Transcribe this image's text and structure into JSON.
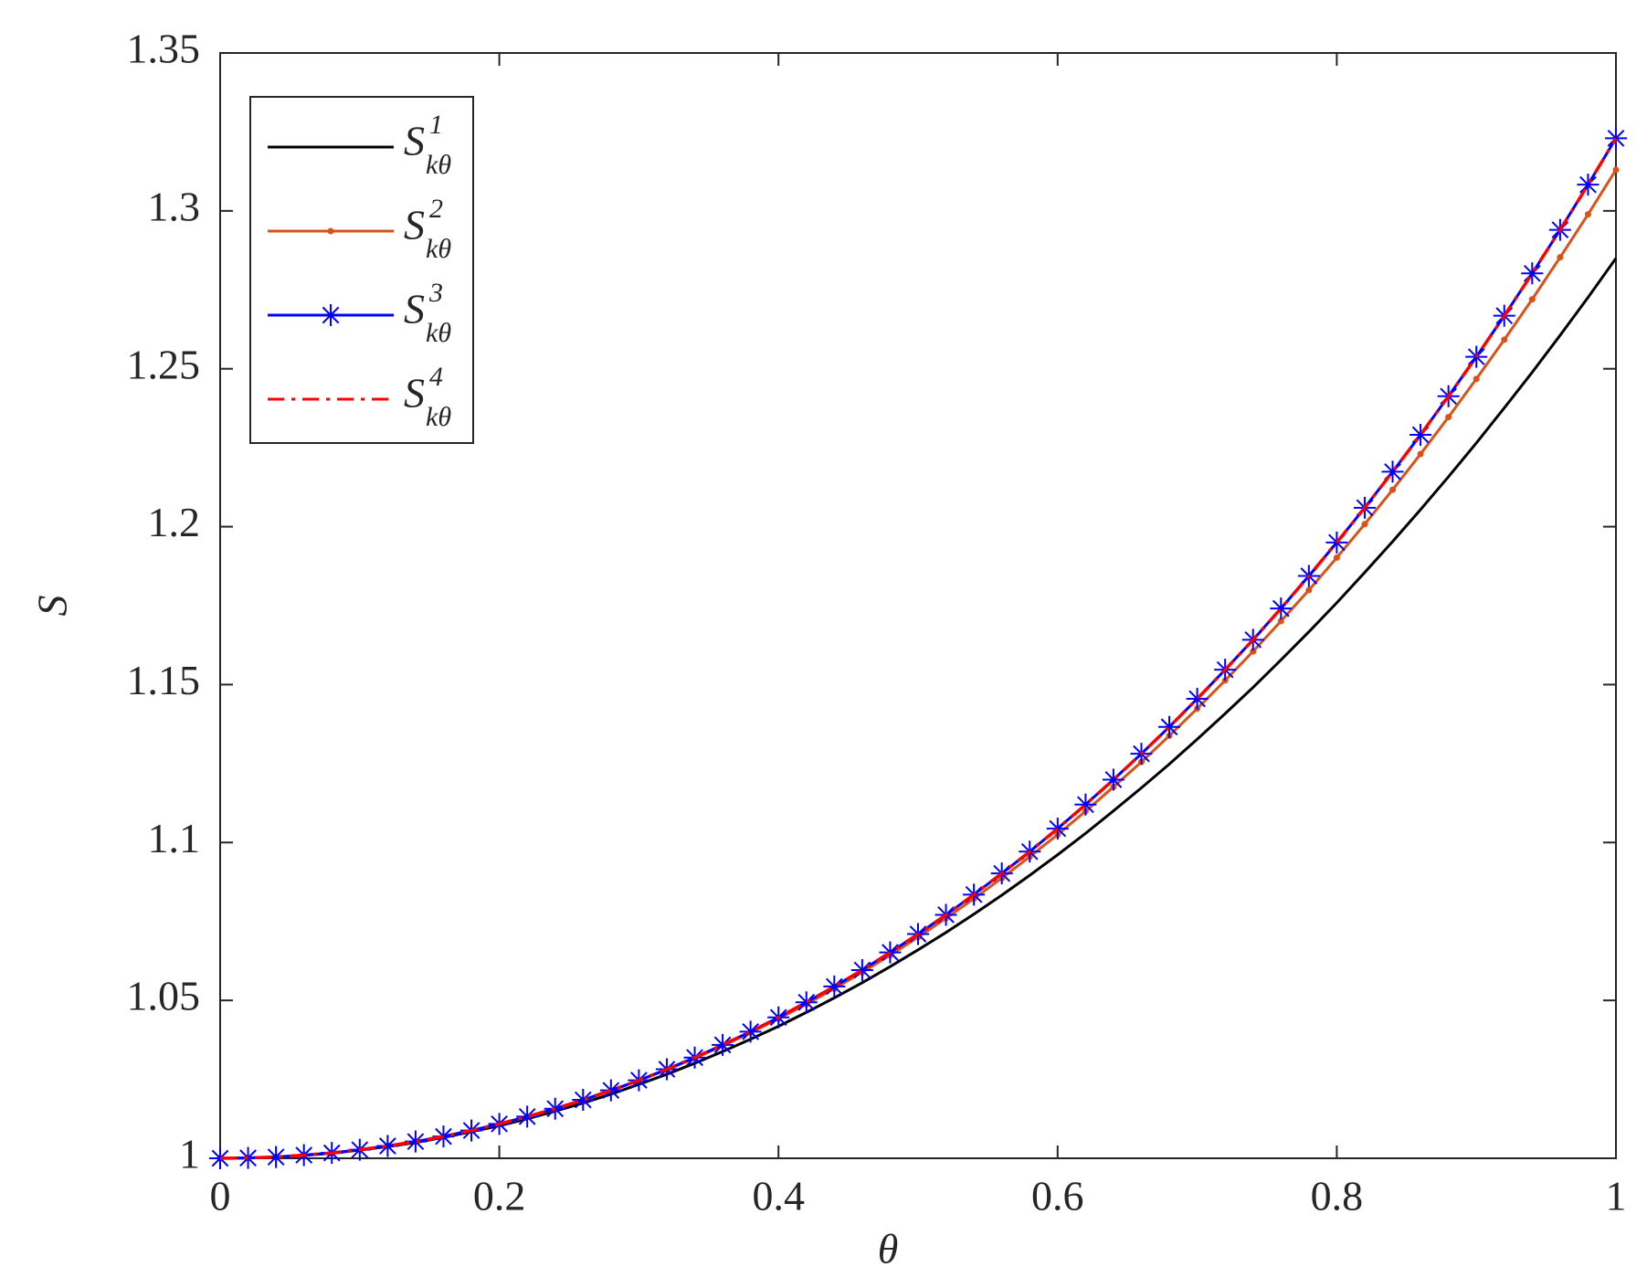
{
  "chart_data": {
    "type": "line",
    "xlabel": "θ",
    "ylabel": "S",
    "x": [
      0,
      0.02,
      0.04,
      0.06,
      0.08,
      0.1,
      0.12,
      0.14,
      0.16,
      0.18,
      0.2,
      0.22,
      0.24,
      0.26,
      0.28,
      0.3,
      0.32,
      0.34,
      0.36,
      0.38,
      0.4,
      0.42,
      0.44,
      0.46,
      0.48,
      0.5,
      0.52,
      0.54,
      0.56,
      0.58,
      0.6,
      0.62,
      0.64,
      0.66,
      0.68,
      0.7,
      0.72,
      0.74,
      0.76,
      0.78,
      0.8,
      0.82,
      0.84,
      0.86,
      0.88,
      0.9,
      0.92,
      0.94,
      0.96,
      0.98,
      1
    ],
    "series": [
      {
        "name": "S",
        "name_sup": "1",
        "name_sub": "kθ",
        "color": "#000000",
        "style": "solid",
        "marker": "none",
        "values": [
          1,
          1.0001,
          1.0004,
          1.0009,
          1.0016,
          1.0026,
          1.0037,
          1.005,
          1.0066,
          1.0084,
          1.0103,
          1.0125,
          1.0149,
          1.0175,
          1.0203,
          1.0234,
          1.0266,
          1.0301,
          1.0338,
          1.0377,
          1.0418,
          1.0462,
          1.0508,
          1.0556,
          1.0607,
          1.066,
          1.0715,
          1.0773,
          1.0833,
          1.0896,
          1.0961,
          1.1029,
          1.11,
          1.1173,
          1.1248,
          1.1327,
          1.1408,
          1.1491,
          1.1578,
          1.1667,
          1.1759,
          1.1855,
          1.1953,
          1.2054,
          1.2158,
          1.2265,
          1.2376,
          1.2489,
          1.2606,
          1.2726,
          1.285
        ]
      },
      {
        "name": "S",
        "name_sup": "2",
        "name_sub": "kθ",
        "color": "#d95319",
        "style": "solid",
        "marker": "dot",
        "values": [
          1,
          1.0001,
          1.0004,
          1.001,
          1.0017,
          1.0027,
          1.0039,
          1.0053,
          1.0069,
          1.0088,
          1.0108,
          1.0131,
          1.0156,
          1.0184,
          1.0214,
          1.0246,
          1.028,
          1.0317,
          1.0356,
          1.0398,
          1.0442,
          1.0488,
          1.0537,
          1.0589,
          1.0643,
          1.07,
          1.076,
          1.0822,
          1.0887,
          1.0955,
          1.1025,
          1.1099,
          1.1176,
          1.1255,
          1.1338,
          1.1424,
          1.1513,
          1.1605,
          1.1701,
          1.1799,
          1.1902,
          1.2008,
          1.2117,
          1.223,
          1.2347,
          1.2468,
          1.2592,
          1.272,
          1.2853,
          1.2989,
          1.313
        ]
      },
      {
        "name": "S",
        "name_sup": "3",
        "name_sub": "kθ",
        "color": "#0000ff",
        "style": "solid",
        "marker": "star",
        "values": [
          1,
          1.0001,
          1.0004,
          1.001,
          1.0017,
          1.0027,
          1.0039,
          1.0053,
          1.0069,
          1.0088,
          1.0109,
          1.0132,
          1.0157,
          1.0185,
          1.0215,
          1.0247,
          1.0282,
          1.0319,
          1.0359,
          1.0401,
          1.0446,
          1.0494,
          1.0544,
          1.0596,
          1.0652,
          1.071,
          1.0771,
          1.0835,
          1.0902,
          1.0971,
          1.1044,
          1.112,
          1.1199,
          1.1281,
          1.1366,
          1.1455,
          1.1547,
          1.1642,
          1.1741,
          1.1844,
          1.195,
          1.206,
          1.2174,
          1.2291,
          1.2413,
          1.2538,
          1.2668,
          1.2802,
          1.294,
          1.3083,
          1.323
        ]
      },
      {
        "name": "S",
        "name_sup": "4",
        "name_sub": "kθ",
        "color": "#ff0000",
        "style": "dashdot",
        "marker": "none",
        "values": [
          1,
          1.0001,
          1.0004,
          1.001,
          1.0017,
          1.0027,
          1.0039,
          1.0053,
          1.0069,
          1.0088,
          1.0109,
          1.0132,
          1.0157,
          1.0185,
          1.0215,
          1.0247,
          1.0282,
          1.0319,
          1.0359,
          1.0401,
          1.0446,
          1.0494,
          1.0544,
          1.0596,
          1.0652,
          1.071,
          1.0771,
          1.0835,
          1.0902,
          1.0971,
          1.1044,
          1.112,
          1.1199,
          1.1281,
          1.1366,
          1.1455,
          1.1547,
          1.1642,
          1.1741,
          1.1844,
          1.195,
          1.206,
          1.2174,
          1.2291,
          1.2413,
          1.2538,
          1.2668,
          1.2802,
          1.294,
          1.3083,
          1.323
        ]
      }
    ],
    "xlim": [
      0,
      1
    ],
    "xticks": [
      0,
      0.2,
      0.4,
      0.6,
      0.8,
      1
    ],
    "ylim": [
      1,
      1.35
    ],
    "yticks": [
      1,
      1.05,
      1.1,
      1.15,
      1.2,
      1.25,
      1.3,
      1.35
    ],
    "grid": false,
    "legend": "upper left"
  }
}
